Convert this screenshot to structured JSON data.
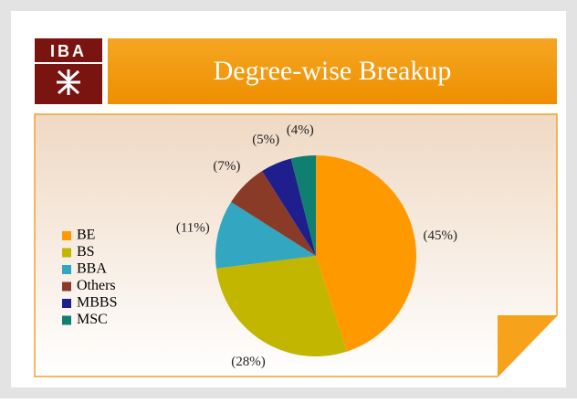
{
  "logo_text": "IBA",
  "chart_data": {
    "type": "pie",
    "title": "Degree-wise Breakup",
    "categories": [
      "BE",
      "BS",
      "BBA",
      "Others",
      "MBBS",
      "MSC"
    ],
    "values": [
      45,
      28,
      11,
      7,
      5,
      4
    ],
    "value_labels": [
      "(45%)",
      "(28%)",
      "(11%)",
      "(7%)",
      "(5%)",
      "(4%)"
    ],
    "colors": [
      "#ff9900",
      "#c2b600",
      "#33a6c2",
      "#8a3b28",
      "#1e1e8c",
      "#0f8070"
    ],
    "legend": "left"
  }
}
